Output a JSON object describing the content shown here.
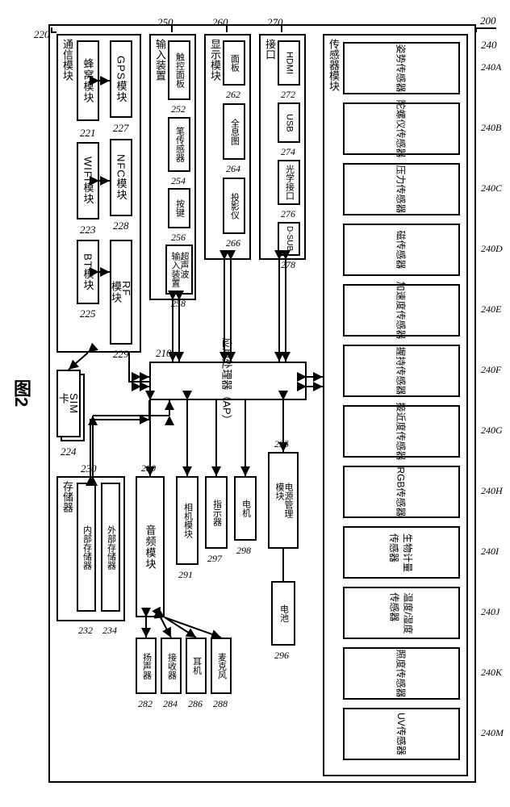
{
  "figure_label": "图2",
  "chassis_ref": "200",
  "ap": {
    "label": "应用处理器（AP）",
    "ref": "210"
  },
  "groups": {
    "comm": {
      "title": "通信模块",
      "ref": "220"
    },
    "input": {
      "title": "输入装置",
      "ref": "250"
    },
    "display": {
      "title": "显示模块",
      "ref": "260"
    },
    "iface": {
      "title": "接口",
      "ref": "270"
    },
    "sensor": {
      "title": "传感器模块",
      "ref": "240"
    },
    "memory": {
      "title": "存储器",
      "ref": "230"
    },
    "audio": {
      "title": "音频模块",
      "ref": "280"
    }
  },
  "comm_items": [
    {
      "label": "蜂窝模块",
      "ref": "221"
    },
    {
      "label": "WIFI模块",
      "ref": "223"
    },
    {
      "label": "BT模块",
      "ref": "225"
    },
    {
      "label": "GPS模块",
      "ref": "227"
    },
    {
      "label": "NFC模块",
      "ref": "228"
    }
  ],
  "rf": {
    "label": "RF\n模块",
    "ref": "229"
  },
  "sim": {
    "label": "SIM\n卡",
    "ref": "224"
  },
  "input_items": [
    {
      "label": "触控面板",
      "ref": "252"
    },
    {
      "label": "笔传感器",
      "ref": "254"
    },
    {
      "label": "按键",
      "ref": "256"
    },
    {
      "label": "超声波\n输入装置",
      "ref": "258"
    }
  ],
  "display_items": [
    {
      "label": "面板",
      "ref": "262"
    },
    {
      "label": "全息图",
      "ref": "264"
    },
    {
      "label": "投影仪",
      "ref": "266"
    }
  ],
  "iface_items": [
    {
      "label": "HDMI",
      "ref": "272"
    },
    {
      "label": "USB",
      "ref": "274"
    },
    {
      "label": "光学接口",
      "ref": "276"
    },
    {
      "label": "D-SUB",
      "ref": "278"
    }
  ],
  "sensor_items": [
    {
      "label": "姿势传感器",
      "ref": "240A"
    },
    {
      "label": "陀螺仪传感器",
      "ref": "240B"
    },
    {
      "label": "压力传感器",
      "ref": "240C"
    },
    {
      "label": "磁传感器",
      "ref": "240D"
    },
    {
      "label": "加速度传感器",
      "ref": "240E"
    },
    {
      "label": "握持传感器",
      "ref": "240F"
    },
    {
      "label": "接近度传感器",
      "ref": "240G"
    },
    {
      "label": "RGB传感器",
      "ref": "240H"
    },
    {
      "label": "生物计量\n传感器",
      "ref": "240I"
    },
    {
      "label": "温度/湿度\n传感器",
      "ref": "240J"
    },
    {
      "label": "照度传感器",
      "ref": "240K"
    },
    {
      "label": "UV传感器",
      "ref": "240M"
    }
  ],
  "memory_items": [
    {
      "label": "内部存储器",
      "ref": "232"
    },
    {
      "label": "外部存储器",
      "ref": "234"
    }
  ],
  "audio_items": [
    {
      "label": "扬声器",
      "ref": "282"
    },
    {
      "label": "接收器",
      "ref": "284"
    },
    {
      "label": "耳机",
      "ref": "286"
    },
    {
      "label": "麦克风",
      "ref": "288"
    }
  ],
  "singles": {
    "camera": {
      "label": "相机模块",
      "ref": "291"
    },
    "indicator": {
      "label": "指示器",
      "ref": "297"
    },
    "motor": {
      "label": "电机",
      "ref": "298"
    },
    "pmic": {
      "label": "电源管理\n模块",
      "ref": "295"
    },
    "battery": {
      "label": "电池",
      "ref": "296"
    }
  },
  "colors": {
    "stroke": "#000000",
    "bg": "#ffffff"
  }
}
